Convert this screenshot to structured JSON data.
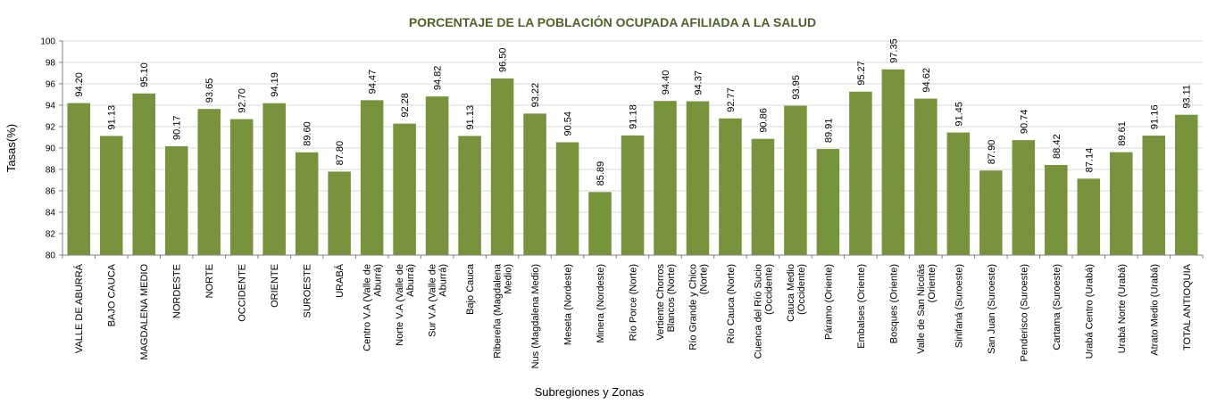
{
  "chart_data": {
    "type": "bar",
    "title": "PORCENTAJE DE LA POBLACIÓN OCUPADA AFILIADA A LA SALUD",
    "xlabel": "Subregiones y  Zonas",
    "ylabel": "Tasas(%)",
    "ylim": [
      80,
      100
    ],
    "yticks": [
      80,
      82,
      84,
      86,
      88,
      90,
      92,
      94,
      96,
      98,
      100
    ],
    "grid": true,
    "bar_color": "#77933c",
    "title_color": "#4f6228",
    "categories": [
      "VALLE DE ABURRÁ",
      "BAJO CAUCA",
      "MAGDALENA MEDIO",
      "NORDESTE",
      "NORTE",
      "OCCIDENTE",
      "ORIENTE",
      "SUROESTE",
      "URABÁ",
      "Centro V.A (Valle de Aburrá)",
      "Norte V.A (Valle de Aburrá)",
      "Sur V.A (Valle de Aburrá)",
      "Bajo Cauca",
      "Ribereña  (Magdalena Medio)",
      "Nus  (Magdalena Medio)",
      "Meseta  (Nordeste)",
      "Minera  (Nordeste)",
      "Río Porce   (Norte)",
      "Vertiente Chorros Blancos (Norte)",
      "Río Grande y Chico (Norte)",
      "Río Cauca  (Norte)",
      "Cuenca del Río Sucio (Occidente)",
      "Cauca Medio (Occidente)",
      "Páramo  (Oriente)",
      "Embalses  (Oriente)",
      "Bosques  (Oriente)",
      "Valle de San Nicolás (Oriente)",
      "Sinifaná (Suroeste)",
      "San Juan  (Suroeste)",
      "Penderisco  (Suroeste)",
      "Cartama  (Suroeste)",
      "Urabá Centro  (Urabá)",
      "Urabá Norte  (Urabá)",
      "Atrato Medio  (Urabá)",
      "TOTAL ANTIOQUIA"
    ],
    "values": [
      94.2,
      91.13,
      95.1,
      90.17,
      93.65,
      92.7,
      94.19,
      89.6,
      87.8,
      94.47,
      92.28,
      94.82,
      91.13,
      96.5,
      93.22,
      90.54,
      85.89,
      91.18,
      94.4,
      94.37,
      92.77,
      90.86,
      93.95,
      89.91,
      95.27,
      97.35,
      94.62,
      91.45,
      87.9,
      90.74,
      88.42,
      87.14,
      89.61,
      91.16,
      93.11
    ],
    "value_labels": [
      "94.20",
      "91.13",
      "95.10",
      "90.17",
      "93.65",
      "92.70",
      "94.19",
      "89.60",
      "87.80",
      "94.47",
      "92.28",
      "94.82",
      "91.13",
      "96.50",
      "93.22",
      "90.54",
      "85.89",
      "91.18",
      "94.40",
      "94.37",
      "92.77",
      "90.86",
      "93.95",
      "89.91",
      "95.27",
      "97.35",
      "94.62",
      "91.45",
      "87.90",
      "90.74",
      "88.42",
      "87.14",
      "89.61",
      "91.16",
      "93.11"
    ]
  }
}
